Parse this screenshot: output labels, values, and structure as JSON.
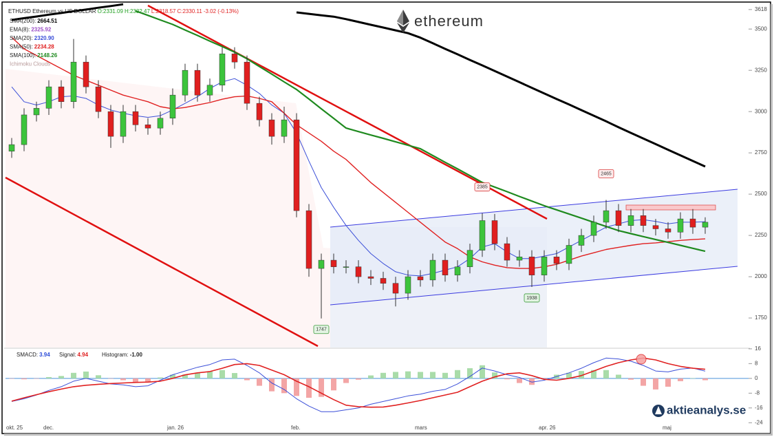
{
  "header": {
    "title": "ETHUSD Ethereum vs US DOLLAR",
    "quote": [
      {
        "text": "O:2331.09",
        "color": "#22a022"
      },
      {
        "text": "H:2332.47",
        "color": "#22a022"
      },
      {
        "text": "L:2318.57",
        "color": "#e02020"
      },
      {
        "text": "C:2330.11",
        "color": "#e02020"
      },
      {
        "text": "-3.02 (-0.13%)",
        "color": "#e02020"
      }
    ]
  },
  "brand": {
    "logo": "ethereum",
    "site": "aktieanalys.se"
  },
  "chart_data": [
    {
      "type": "candlestick",
      "up_color": "#3cc43c",
      "down_color": "#e01f1f",
      "grid": false,
      "categories": [
        "okt. 25",
        null,
        null,
        "dec.",
        null,
        null,
        null,
        null,
        null,
        null,
        null,
        null,
        null,
        "jan. 26",
        null,
        null,
        null,
        null,
        null,
        null,
        null,
        null,
        null,
        "feb.",
        null,
        null,
        null,
        null,
        null,
        null,
        null,
        null,
        null,
        "mars",
        null,
        null,
        null,
        null,
        null,
        null,
        null,
        null,
        null,
        "apr. 26",
        null,
        null,
        null,
        null,
        null,
        null,
        null,
        null,
        null,
        "maj",
        null,
        null,
        null
      ],
      "open": [
        2760,
        2800,
        2980,
        3020,
        3150,
        3060,
        3300,
        3150,
        3000,
        2850,
        3000,
        2920,
        2900,
        2960,
        3100,
        3250,
        3100,
        3160,
        3350,
        3300,
        3050,
        2950,
        2850,
        2950,
        2400,
        2050,
        2100,
        2060,
        2060,
        2000,
        1990,
        1960,
        1900,
        2000,
        1980,
        2100,
        2010,
        2060,
        2160,
        2340,
        2200,
        2100,
        2120,
        2010,
        2120,
        2080,
        2190,
        2250,
        2330,
        2400,
        2310,
        2370,
        2310,
        2290,
        2270,
        2350,
        2300
      ],
      "high": [
        2840,
        3020,
        3060,
        3190,
        3190,
        3440,
        3340,
        3190,
        3040,
        3040,
        3040,
        2960,
        3000,
        3140,
        3290,
        3290,
        3200,
        3390,
        3390,
        3340,
        3090,
        2990,
        3030,
        2990,
        2440,
        2140,
        2140,
        2100,
        2100,
        2040,
        2030,
        2000,
        2040,
        2040,
        2140,
        2140,
        2100,
        2200,
        2385,
        2380,
        2240,
        2160,
        2160,
        2160,
        2160,
        2230,
        2290,
        2370,
        2465,
        2440,
        2410,
        2410,
        2350,
        2330,
        2390,
        2410,
        2360
      ],
      "low": [
        2720,
        2760,
        2940,
        2980,
        3020,
        3020,
        3110,
        2960,
        2780,
        2810,
        2880,
        2860,
        2860,
        2920,
        3060,
        3060,
        3060,
        3120,
        3260,
        3010,
        2910,
        2800,
        2810,
        2360,
        2000,
        1747,
        2020,
        2020,
        1960,
        1950,
        1920,
        1820,
        1860,
        1940,
        1940,
        1970,
        1970,
        2020,
        2120,
        2160,
        2060,
        2060,
        1938,
        1970,
        2040,
        2040,
        2150,
        2210,
        2290,
        2270,
        2270,
        2270,
        2250,
        2230,
        2230,
        2260,
        2260
      ],
      "close": [
        2800,
        2980,
        3020,
        3150,
        3060,
        3300,
        3150,
        3000,
        2850,
        3000,
        2920,
        2900,
        2960,
        3100,
        3250,
        3100,
        3160,
        3350,
        3300,
        3050,
        2950,
        2850,
        2950,
        2400,
        2050,
        2100,
        2060,
        2060,
        2000,
        1990,
        1960,
        1900,
        2000,
        1980,
        2100,
        2010,
        2060,
        2160,
        2340,
        2200,
        2100,
        2120,
        2010,
        2120,
        2080,
        2190,
        2250,
        2330,
        2400,
        2310,
        2370,
        2310,
        2290,
        2270,
        2350,
        2300,
        2330
      ],
      "series": [
        {
          "color": "#000000",
          "values": [
            3555,
            3566,
            3576,
            3587,
            3597,
            3608,
            3618,
            3629,
            3639,
            3650,
            null,
            null,
            null,
            null,
            null,
            null,
            null,
            null,
            null,
            null,
            null,
            null,
            null,
            3601,
            3592,
            3583,
            3575,
            3560,
            3543,
            3526,
            3509,
            3492,
            3475,
            3448,
            3414,
            3380,
            3347,
            3313,
            3280,
            3246,
            3212,
            3178,
            3144,
            3110,
            3076,
            3043,
            3009,
            2975,
            2941,
            2905,
            2871,
            2837,
            2803,
            2769,
            2735,
            2701,
            2667
          ]
        },
        {
          "color": "#3b4fd8",
          "values": [
            3150,
            3060,
            3040,
            3060,
            3090,
            3095,
            3080,
            3040,
            3010,
            2990,
            2975,
            2965,
            2975,
            3010,
            3050,
            3090,
            3140,
            3180,
            3200,
            3160,
            3110,
            3040,
            2990,
            2870,
            2700,
            2540,
            2420,
            2310,
            2220,
            2140,
            2080,
            2030,
            2010,
            2005,
            2020,
            2040,
            2060,
            2110,
            2180,
            2200,
            2150,
            2110,
            2110,
            2125,
            2140,
            2180,
            2220,
            2260,
            2300,
            2320,
            2340,
            2345,
            2335,
            2320,
            2330,
            2330,
            2333
          ]
        },
        {
          "color": "#e02020",
          "values": [
            3450,
            3380,
            3340,
            3300,
            3260,
            3220,
            3190,
            3160,
            3130,
            3100,
            3080,
            3060,
            3030,
            3017,
            3025,
            3040,
            3055,
            3075,
            3090,
            3095,
            3080,
            3060,
            2990,
            2920,
            2870,
            2820,
            2760,
            2710,
            2640,
            2570,
            2510,
            2450,
            2390,
            2330,
            2270,
            2210,
            2170,
            2120,
            2090,
            2070,
            2055,
            2050,
            2050,
            2060,
            2075,
            2100,
            2125,
            2145,
            2165,
            2178,
            2190,
            2200,
            2205,
            2212,
            2220,
            2225,
            2229
          ]
        },
        {
          "color": "#1f8a1f",
          "values": [
            null,
            null,
            null,
            null,
            null,
            null,
            null,
            null,
            null,
            null,
            3610,
            3583,
            3555,
            3528,
            3494,
            3461,
            3427,
            3394,
            3360,
            3320,
            3273,
            3227,
            3180,
            3134,
            3076,
            3017,
            2959,
            2900,
            2879,
            2858,
            2838,
            2817,
            2796,
            2775,
            2734,
            2693,
            2653,
            2612,
            2571,
            2543,
            2515,
            2486,
            2458,
            2430,
            2405,
            2380,
            2355,
            2329,
            2304,
            2279,
            2261,
            2243,
            2225,
            2208,
            2190,
            2172,
            2154
          ]
        }
      ],
      "legend": [
        {
          "name": "SMA(200):",
          "value_label": "2664.51",
          "color": "#000000"
        },
        {
          "name": "EMA(8):",
          "value_label": "2325.92",
          "color": "#9b4fc6"
        },
        {
          "name": "SMA(20):",
          "value_label": "2320.90",
          "color": "#3b4fd8"
        },
        {
          "name": "SMA(50):",
          "value_label": "2234.28",
          "color": "#e02020"
        },
        {
          "name": "SMA(100):",
          "value_label": "2148.26",
          "color": "#1f8a1f"
        },
        {
          "name": "Ichimoku Clouds",
          "color": "#b89a9a"
        }
      ],
      "annotations": [
        {
          "value": 2385,
          "color": "#d93b3b"
        },
        {
          "value": 2465,
          "color": "#d93b3b"
        },
        {
          "value": 1938,
          "color": "#3a9a3a"
        },
        {
          "value": 1747,
          "color": "#3a9a3a"
        }
      ],
      "ylim": [
        1571,
        3655
      ],
      "yticks": [
        1750,
        2000,
        2250,
        2500,
        2750,
        3000,
        3250,
        3500,
        3618
      ]
    },
    {
      "type": "macd",
      "legend": [
        {
          "name": "SMACD:",
          "value_label": "3.94",
          "color": "#2b4bd8"
        },
        {
          "name": "Signal:",
          "value_label": "4.94",
          "color": "#e02020"
        },
        {
          "name": "Histogram:",
          "value_label": "-1.00",
          "color": "#222222"
        }
      ],
      "series": [
        {
          "color": "#3b4fd8",
          "values": [
            -12.5,
            -11,
            -9,
            -6.5,
            -4.5,
            -1.5,
            0,
            -1.5,
            -3,
            -3.5,
            -4.5,
            -4,
            -1,
            2,
            4,
            6,
            7.5,
            10,
            10.4,
            7,
            3,
            -2.5,
            -6,
            -11,
            -15,
            -18,
            -18,
            -17,
            -16,
            -14,
            -12.5,
            -11,
            -9.5,
            -8.5,
            -7,
            -6,
            -3,
            1,
            5.6,
            4,
            2,
            0.5,
            -2,
            -1,
            1,
            3,
            5.5,
            8.5,
            11,
            10.5,
            9.3,
            7,
            4,
            3.5,
            5,
            5.6,
            3.94
          ]
        },
        {
          "color": "#e02020",
          "values": [
            -12.3,
            -10.5,
            -8.8,
            -7.2,
            -5.8,
            -4.5,
            -3.7,
            -3.2,
            -2.8,
            -2.5,
            -2.2,
            -2,
            -1.5,
            0,
            1.9,
            3,
            3.7,
            5.5,
            7.5,
            8,
            7,
            4.5,
            2,
            -1.5,
            -4.5,
            -8,
            -11.5,
            -14.5,
            -15.3,
            -15.6,
            -15.5,
            -14.5,
            -13.3,
            -12,
            -10.5,
            -9,
            -7.5,
            -4.5,
            -1.5,
            0.8,
            2.5,
            3,
            1.5,
            -0.5,
            -1,
            0,
            1.5,
            4,
            6.5,
            8.5,
            10,
            11,
            10,
            8,
            6.5,
            5.5,
            4.94
          ]
        }
      ],
      "histogram": {
        "up_color": "#a9dca9",
        "down_color": "#f3a5a5",
        "values": [
          -0.2,
          -0.5,
          -0.2,
          0.7,
          1.3,
          3,
          3.7,
          1.7,
          -0.2,
          -1,
          -2.3,
          -2,
          0.5,
          2,
          2.1,
          3,
          3.8,
          4.5,
          2.9,
          -1,
          -4,
          -7,
          -8,
          -9.5,
          -10.5,
          -10,
          -6.5,
          -2.5,
          -0.7,
          1.6,
          3,
          3.5,
          3.8,
          3.5,
          3.5,
          3,
          4.5,
          5.5,
          7.1,
          3.2,
          -0.5,
          -2.5,
          -3.5,
          -0.5,
          2,
          3,
          4,
          4.5,
          4.5,
          2,
          -0.7,
          -4,
          -6,
          -4.5,
          -1.5,
          0.1,
          -1
        ]
      },
      "zero_color": "#4a90d9",
      "ylim": [
        -28,
        16.7
      ],
      "yticks": [
        16,
        8,
        0,
        -8,
        -16,
        -24
      ]
    }
  ]
}
